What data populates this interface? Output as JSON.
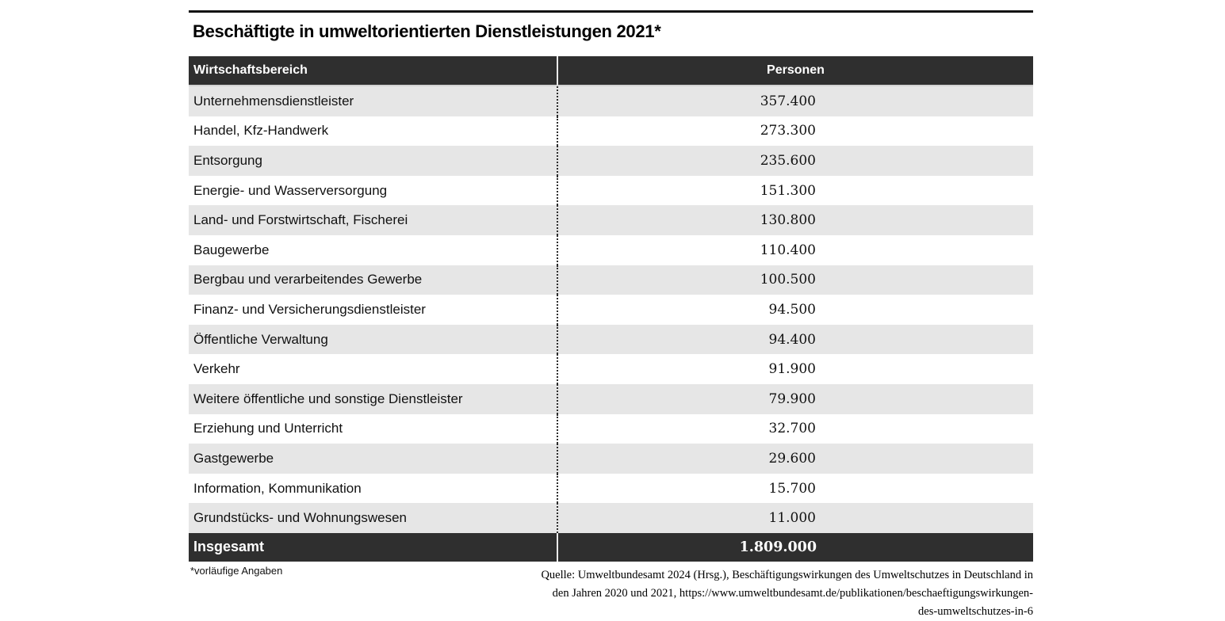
{
  "title": "Beschäftigte in umweltorientierten Dienstleistungen 2021*",
  "table": {
    "col_sector": "Wirtschaftsbereich",
    "col_value": "Personen",
    "rows": [
      {
        "label": "Unternehmensdienstleister",
        "value": "357.400"
      },
      {
        "label": "Handel, Kfz-Handwerk",
        "value": "273.300"
      },
      {
        "label": "Entsorgung",
        "value": "235.600"
      },
      {
        "label": "Energie- und Wasserversorgung",
        "value": "151.300"
      },
      {
        "label": "Land- und Forstwirtschaft, Fischerei",
        "value": "130.800"
      },
      {
        "label": "Baugewerbe",
        "value": "110.400"
      },
      {
        "label": "Bergbau und verarbeitendes Gewerbe",
        "value": "100.500"
      },
      {
        "label": "Finanz- und Versicherungsdienstleister",
        "value": "94.500"
      },
      {
        "label": "Öffentliche Verwaltung",
        "value": "94.400"
      },
      {
        "label": "Verkehr",
        "value": "91.900"
      },
      {
        "label": "Weitere öffentliche und sonstige Dienstleister",
        "value": "79.900"
      },
      {
        "label": "Erziehung und Unterricht",
        "value": "32.700"
      },
      {
        "label": "Gastgewerbe",
        "value": "29.600"
      },
      {
        "label": "Information, Kommunikation",
        "value": "15.700"
      },
      {
        "label": "Grundstücks- und Wohnungswesen",
        "value": "11.000"
      }
    ],
    "total": {
      "label": "Insgesamt",
      "value": "1.809.000"
    }
  },
  "footnote": "*vorläufige Angaben",
  "source_lines": [
    "Quelle: Umweltbundesamt 2024 (Hrsg.), Beschäftigungswirkungen des Umweltschutzes in Deutschland in",
    "den Jahren 2020 und 2021,  https://www.umweltbundesamt.de/publikationen/beschaeftigungswirkungen-",
    "des-umweltschutzes-in-6"
  ],
  "colors": {
    "header_bg": "#2f2f2f",
    "stripe_bg": "#e6e6e6",
    "text": "#111111",
    "header_text": "#ffffff"
  },
  "chart_data": {
    "type": "table",
    "title": "Beschäftigte in umweltorientierten Dienstleistungen 2021*",
    "columns": [
      "Wirtschaftsbereich",
      "Personen"
    ],
    "categories": [
      "Unternehmensdienstleister",
      "Handel, Kfz-Handwerk",
      "Entsorgung",
      "Energie- und Wasserversorgung",
      "Land- und Forstwirtschaft, Fischerei",
      "Baugewerbe",
      "Bergbau und verarbeitendes Gewerbe",
      "Finanz- und Versicherungsdienstleister",
      "Öffentliche Verwaltung",
      "Verkehr",
      "Weitere öffentliche und sonstige Dienstleister",
      "Erziehung und Unterricht",
      "Gastgewerbe",
      "Information, Kommunikation",
      "Grundstücks- und Wohnungswesen"
    ],
    "values": [
      357400,
      273300,
      235600,
      151300,
      130800,
      110400,
      100500,
      94500,
      94400,
      91900,
      79900,
      32700,
      29600,
      15700,
      11000
    ],
    "total": 1809000
  }
}
